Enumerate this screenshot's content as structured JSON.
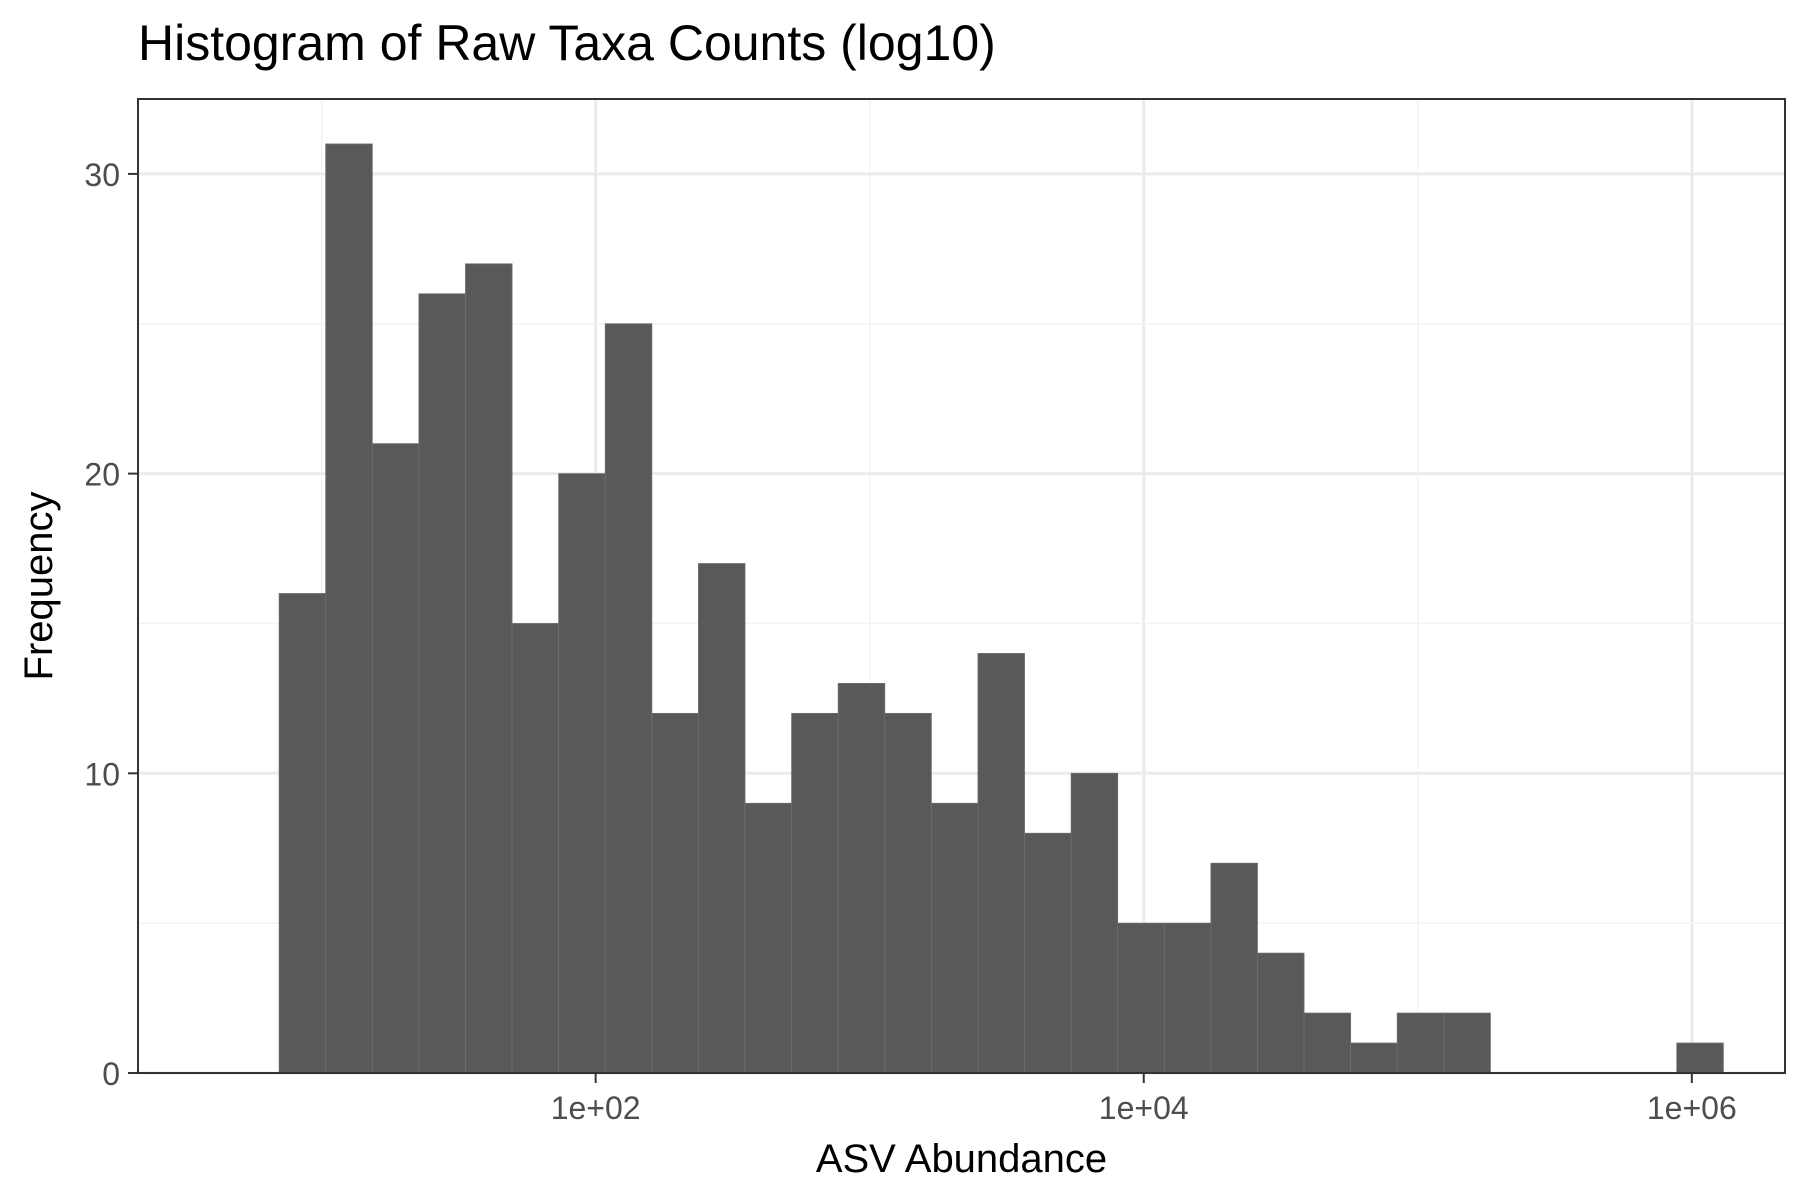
{
  "chart_data": {
    "type": "bar",
    "title": "Histogram of Raw Taxa Counts (log10)",
    "xlabel": "ASV Abundance",
    "ylabel": "Frequency",
    "x_scale": "log10",
    "x_ticks": [
      {
        "value": 100,
        "label": "1e+02"
      },
      {
        "value": 10000,
        "label": "1e+04"
      },
      {
        "value": 1000000,
        "label": "1e+06"
      }
    ],
    "y_ticks": [
      0,
      10,
      20,
      30
    ],
    "ylim": [
      0,
      32.5
    ],
    "xlim_log10": [
      0.33,
      6.34
    ],
    "grid": true,
    "bin_width_log10": 0.17,
    "bars": [
      {
        "log10_center": 0.93,
        "count": 16
      },
      {
        "log10_center": 1.1,
        "count": 31
      },
      {
        "log10_center": 1.27,
        "count": 21
      },
      {
        "log10_center": 1.44,
        "count": 26
      },
      {
        "log10_center": 1.61,
        "count": 27
      },
      {
        "log10_center": 1.78,
        "count": 15
      },
      {
        "log10_center": 1.95,
        "count": 20
      },
      {
        "log10_center": 2.12,
        "count": 25
      },
      {
        "log10_center": 2.29,
        "count": 12
      },
      {
        "log10_center": 2.46,
        "count": 17
      },
      {
        "log10_center": 2.63,
        "count": 9
      },
      {
        "log10_center": 2.8,
        "count": 12
      },
      {
        "log10_center": 2.97,
        "count": 13
      },
      {
        "log10_center": 3.14,
        "count": 12
      },
      {
        "log10_center": 3.31,
        "count": 9
      },
      {
        "log10_center": 3.48,
        "count": 14
      },
      {
        "log10_center": 3.65,
        "count": 8
      },
      {
        "log10_center": 3.82,
        "count": 10
      },
      {
        "log10_center": 3.99,
        "count": 5
      },
      {
        "log10_center": 4.16,
        "count": 5
      },
      {
        "log10_center": 4.33,
        "count": 7
      },
      {
        "log10_center": 4.5,
        "count": 4
      },
      {
        "log10_center": 4.67,
        "count": 2
      },
      {
        "log10_center": 4.84,
        "count": 1
      },
      {
        "log10_center": 5.01,
        "count": 2
      },
      {
        "log10_center": 5.18,
        "count": 2
      },
      {
        "log10_center": 5.35,
        "count": 0
      },
      {
        "log10_center": 5.52,
        "count": 0
      },
      {
        "log10_center": 5.69,
        "count": 0
      },
      {
        "log10_center": 5.86,
        "count": 0
      },
      {
        "log10_center": 6.03,
        "count": 1
      }
    ],
    "colors": {
      "bar_fill": "#595959",
      "bar_edge": "#6e6e6e",
      "panel_border": "#333333",
      "grid_major": "#ebebeb",
      "grid_minor": "#f3f3f3",
      "tick_text": "#4d4d4d",
      "axis_title": "#000000"
    }
  }
}
